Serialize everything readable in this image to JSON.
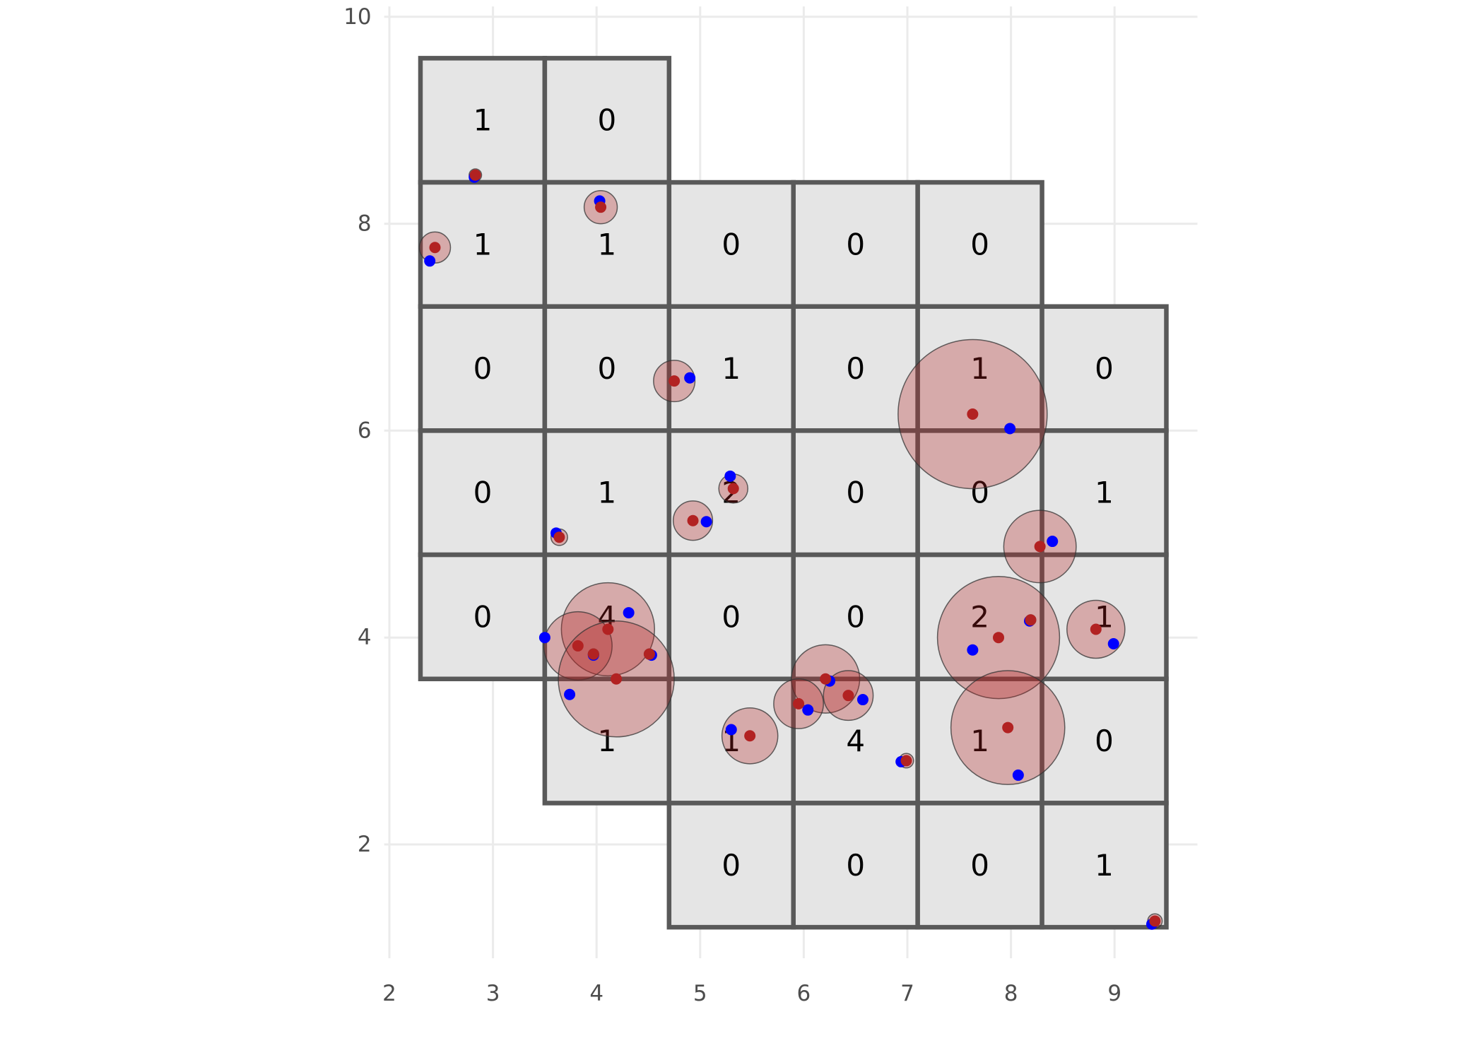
{
  "chart_data": {
    "type": "scatter",
    "title": "",
    "xlabel": "",
    "ylabel": "",
    "xlim": [
      1.95,
      9.8
    ],
    "ylim": [
      0.9,
      10.1
    ],
    "grid": true,
    "x_ticks": [
      "2",
      "3",
      "4",
      "5",
      "6",
      "7",
      "8",
      "9"
    ],
    "y_ticks": [
      "2",
      "4",
      "6",
      "8",
      "10"
    ],
    "colors": {
      "cell_fill": "#e5e5e5",
      "cell_border": "#595959",
      "grid": "#ebebeb",
      "circle_fill": "#b22222",
      "red_point": "#b22222",
      "blue_point": "#0000ff"
    },
    "cells": [
      {
        "x": [
          2.3,
          3.5
        ],
        "y": [
          8.4,
          9.6
        ],
        "count": "1"
      },
      {
        "x": [
          3.5,
          4.7
        ],
        "y": [
          8.4,
          9.6
        ],
        "count": "0"
      },
      {
        "x": [
          2.3,
          3.5
        ],
        "y": [
          7.2,
          8.4
        ],
        "count": "1"
      },
      {
        "x": [
          3.5,
          4.7
        ],
        "y": [
          7.2,
          8.4
        ],
        "count": "1"
      },
      {
        "x": [
          4.7,
          5.9
        ],
        "y": [
          7.2,
          8.4
        ],
        "count": "0"
      },
      {
        "x": [
          5.9,
          7.1
        ],
        "y": [
          7.2,
          8.4
        ],
        "count": "0"
      },
      {
        "x": [
          7.1,
          8.3
        ],
        "y": [
          7.2,
          8.4
        ],
        "count": "0"
      },
      {
        "x": [
          2.3,
          3.5
        ],
        "y": [
          6.0,
          7.2
        ],
        "count": "0"
      },
      {
        "x": [
          3.5,
          4.7
        ],
        "y": [
          6.0,
          7.2
        ],
        "count": "0"
      },
      {
        "x": [
          4.7,
          5.9
        ],
        "y": [
          6.0,
          7.2
        ],
        "count": "1"
      },
      {
        "x": [
          5.9,
          7.1
        ],
        "y": [
          6.0,
          7.2
        ],
        "count": "0"
      },
      {
        "x": [
          7.1,
          8.3
        ],
        "y": [
          6.0,
          7.2
        ],
        "count": "1"
      },
      {
        "x": [
          8.3,
          9.5
        ],
        "y": [
          6.0,
          7.2
        ],
        "count": "0"
      },
      {
        "x": [
          2.3,
          3.5
        ],
        "y": [
          4.8,
          6.0
        ],
        "count": "0"
      },
      {
        "x": [
          3.5,
          4.7
        ],
        "y": [
          4.8,
          6.0
        ],
        "count": "1"
      },
      {
        "x": [
          4.7,
          5.9
        ],
        "y": [
          4.8,
          6.0
        ],
        "count": "2"
      },
      {
        "x": [
          5.9,
          7.1
        ],
        "y": [
          4.8,
          6.0
        ],
        "count": "0"
      },
      {
        "x": [
          7.1,
          8.3
        ],
        "y": [
          4.8,
          6.0
        ],
        "count": "0"
      },
      {
        "x": [
          8.3,
          9.5
        ],
        "y": [
          4.8,
          6.0
        ],
        "count": "1"
      },
      {
        "x": [
          2.3,
          3.5
        ],
        "y": [
          3.6,
          4.8
        ],
        "count": "0"
      },
      {
        "x": [
          3.5,
          4.7
        ],
        "y": [
          3.6,
          4.8
        ],
        "count": "4"
      },
      {
        "x": [
          4.7,
          5.9
        ],
        "y": [
          3.6,
          4.8
        ],
        "count": "0"
      },
      {
        "x": [
          5.9,
          7.1
        ],
        "y": [
          3.6,
          4.8
        ],
        "count": "0"
      },
      {
        "x": [
          7.1,
          8.3
        ],
        "y": [
          3.6,
          4.8
        ],
        "count": "2"
      },
      {
        "x": [
          8.3,
          9.5
        ],
        "y": [
          3.6,
          4.8
        ],
        "count": "1"
      },
      {
        "x": [
          3.5,
          4.7
        ],
        "y": [
          2.4,
          3.6
        ],
        "count": "1"
      },
      {
        "x": [
          4.7,
          5.9
        ],
        "y": [
          2.4,
          3.6
        ],
        "count": "1"
      },
      {
        "x": [
          5.9,
          7.1
        ],
        "y": [
          2.4,
          3.6
        ],
        "count": "4"
      },
      {
        "x": [
          7.1,
          8.3
        ],
        "y": [
          2.4,
          3.6
        ],
        "count": "1"
      },
      {
        "x": [
          8.3,
          9.5
        ],
        "y": [
          2.4,
          3.6
        ],
        "count": "0"
      },
      {
        "x": [
          4.7,
          5.9
        ],
        "y": [
          1.2,
          2.4
        ],
        "count": "0"
      },
      {
        "x": [
          5.9,
          7.1
        ],
        "y": [
          1.2,
          2.4
        ],
        "count": "0"
      },
      {
        "x": [
          7.1,
          8.3
        ],
        "y": [
          1.2,
          2.4
        ],
        "count": "0"
      },
      {
        "x": [
          8.3,
          9.5
        ],
        "y": [
          1.2,
          2.4
        ],
        "count": "1"
      }
    ],
    "points": [
      {
        "red": [
          2.83,
          8.47
        ],
        "blue": [
          2.82,
          8.45
        ],
        "radius": 0.06
      },
      {
        "red": [
          4.04,
          8.16
        ],
        "blue": [
          4.03,
          8.22
        ],
        "radius": 0.16
      },
      {
        "red": [
          2.44,
          7.77
        ],
        "blue": [
          2.39,
          7.64
        ],
        "radius": 0.15
      },
      {
        "red": [
          4.75,
          6.48
        ],
        "blue": [
          4.9,
          6.51
        ],
        "radius": 0.2
      },
      {
        "red": [
          7.63,
          6.16
        ],
        "blue": [
          7.99,
          6.02
        ],
        "radius": 0.72
      },
      {
        "red": [
          5.32,
          5.44
        ],
        "blue": [
          5.29,
          5.56
        ],
        "radius": 0.14
      },
      {
        "red": [
          4.93,
          5.13
        ],
        "blue": [
          5.06,
          5.12
        ],
        "radius": 0.19
      },
      {
        "red": [
          3.64,
          4.97
        ],
        "blue": [
          3.61,
          5.01
        ],
        "radius": 0.08
      },
      {
        "red": [
          8.28,
          4.88
        ],
        "blue": [
          8.4,
          4.93
        ],
        "radius": 0.35
      },
      {
        "red": [
          4.11,
          4.08
        ],
        "blue": [
          4.31,
          4.24
        ],
        "radius": 0.45
      },
      {
        "red": [
          3.82,
          3.92
        ],
        "blue": [
          3.5,
          4.0
        ],
        "radius": 0.33
      },
      {
        "red": [
          3.97,
          3.84
        ],
        "blue": [
          3.97,
          3.83
        ],
        "radius": 0.05
      },
      {
        "red": [
          4.51,
          3.84
        ],
        "blue": [
          4.53,
          3.83
        ],
        "radius": 0.05
      },
      {
        "red": [
          4.19,
          3.6
        ],
        "blue": [
          3.74,
          3.45
        ],
        "radius": 0.56
      },
      {
        "red": [
          7.88,
          4.0
        ],
        "blue": [
          7.63,
          3.88
        ],
        "radius": 0.59
      },
      {
        "red": [
          8.19,
          4.17
        ],
        "blue": [
          8.18,
          4.16
        ],
        "radius": 0.05
      },
      {
        "red": [
          8.82,
          4.08
        ],
        "blue": [
          8.99,
          3.94
        ],
        "radius": 0.28
      },
      {
        "red": [
          6.21,
          3.6
        ],
        "blue": [
          6.25,
          3.58
        ],
        "radius": 0.33
      },
      {
        "red": [
          6.43,
          3.44
        ],
        "blue": [
          6.57,
          3.4
        ],
        "radius": 0.24
      },
      {
        "red": [
          5.95,
          3.36
        ],
        "blue": [
          6.04,
          3.3
        ],
        "radius": 0.24
      },
      {
        "red": [
          5.48,
          3.05
        ],
        "blue": [
          5.3,
          3.11
        ],
        "radius": 0.27
      },
      {
        "red": [
          6.99,
          2.81
        ],
        "blue": [
          6.94,
          2.8
        ],
        "radius": 0.07
      },
      {
        "red": [
          7.97,
          3.13
        ],
        "blue": [
          8.07,
          2.67
        ],
        "radius": 0.55
      },
      {
        "red": [
          9.39,
          1.26
        ],
        "blue": [
          9.36,
          1.23
        ],
        "radius": 0.07
      }
    ]
  }
}
